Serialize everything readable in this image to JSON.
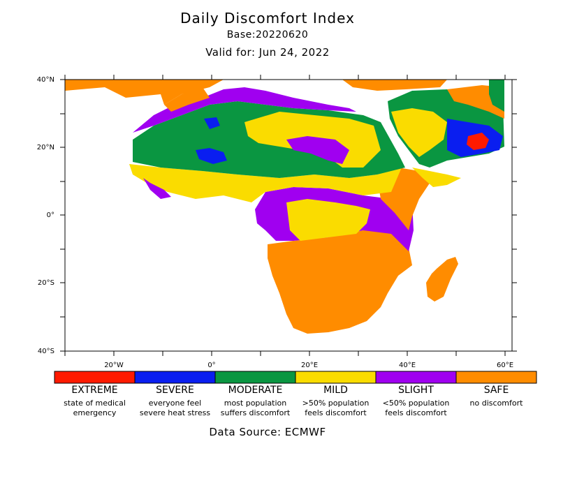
{
  "header": {
    "title": "Daily Discomfort Index",
    "base": "Base:20220620",
    "valid": "Valid for: Jun 24, 2022"
  },
  "axes": {
    "lat_labels": [
      "40°N",
      "20°N",
      "0°",
      "20°S",
      "40°S"
    ],
    "lon_labels": [
      "20°W",
      "0°",
      "20°E",
      "40°E",
      "60°E"
    ]
  },
  "legend": [
    {
      "label": "EXTREME",
      "desc1": "state of medical",
      "desc2": "emergency",
      "color": "#ff1a00"
    },
    {
      "label": "SEVERE",
      "desc1": "everyone feel",
      "desc2": "severe heat stress",
      "color": "#0a1ef0"
    },
    {
      "label": "MODERATE",
      "desc1": "most population",
      "desc2": "suffers discomfort",
      "color": "#0a9641"
    },
    {
      "label": "MILD",
      "desc1": ">50% population",
      "desc2": "feels discomfort",
      "color": "#fadc00"
    },
    {
      "label": "SLIGHT",
      "desc1": "<50% population",
      "desc2": "feels discomfort",
      "color": "#a000f0"
    },
    {
      "label": "SAFE",
      "desc1": "no discomfort",
      "desc2": "",
      "color": "#ff8c00"
    }
  ],
  "source": "Data Source: ECMWF"
}
